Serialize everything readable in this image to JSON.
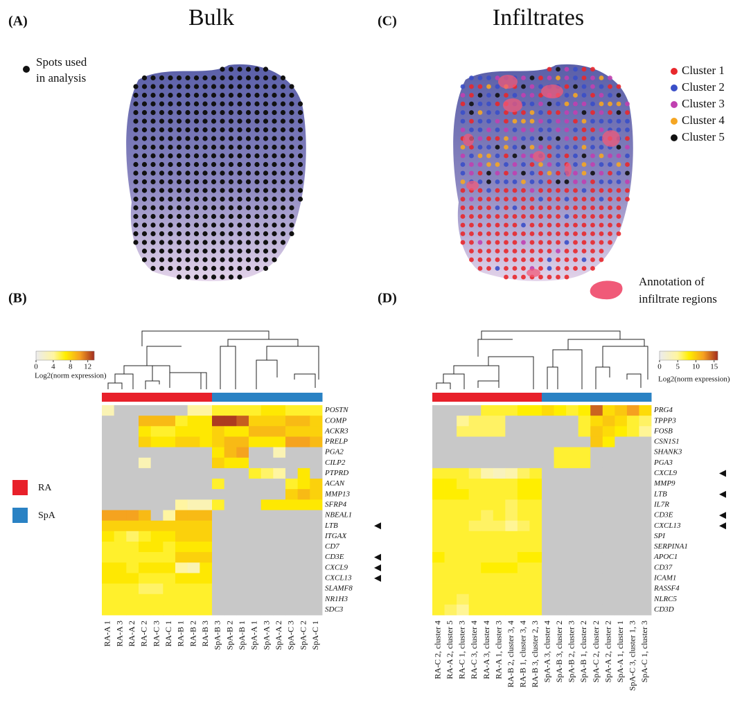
{
  "panel_a": {
    "label": "(A)",
    "title": "Bulk",
    "legend_lines": [
      "Spots used",
      "in analysis"
    ],
    "spot_color": "#111111"
  },
  "panel_c": {
    "label": "(C)",
    "title": "Infiltrates",
    "clusters": [
      {
        "name": "Cluster 1",
        "color": "#e8282c"
      },
      {
        "name": "Cluster 2",
        "color": "#3a4fc8"
      },
      {
        "name": "Cluster 3",
        "color": "#c040b0"
      },
      {
        "name": "Cluster 4",
        "color": "#f5a623"
      },
      {
        "name": "Cluster 5",
        "color": "#111111",
        "text_color": "#e8202a"
      }
    ],
    "annotation_lines": [
      "Annotation of",
      "infiltrate regions"
    ],
    "annotation_color": "#f05a78"
  },
  "panel_b": {
    "label": "(B)",
    "colorbar": {
      "label": "Log2(norm expression)",
      "lim": [
        0,
        13.5
      ],
      "ticks": [
        0,
        4,
        8,
        12
      ]
    },
    "groups": [
      {
        "name": "RA",
        "color": "#e8202a"
      },
      {
        "name": "SpA",
        "color": "#2a82c4"
      }
    ],
    "columns": [
      "RA-A 1",
      "RA-A 3",
      "RA-A 2",
      "RA-C 2",
      "RA-C 3",
      "RA-C 1",
      "RA-B 1",
      "RA-B 2",
      "RA-B 3",
      "SpA-B 3",
      "SpA-B 2",
      "SpA-B 1",
      "SpA-A 1",
      "SpA-A 3",
      "SpA-A 2",
      "SpA-C 3",
      "SpA-C 2",
      "SpA-C 1"
    ],
    "highlight_index": 2,
    "highlight_color": "#e8202a",
    "rows": [
      {
        "gene": "POSTN",
        "marked": false,
        "values": [
          3,
          null,
          null,
          null,
          null,
          null,
          null,
          4,
          4,
          6,
          6,
          6,
          6,
          7,
          7,
          6,
          6,
          6
        ]
      },
      {
        "gene": "COMP",
        "marked": false,
        "values": [
          null,
          null,
          null,
          9,
          9,
          9,
          6,
          7,
          7,
          13,
          13,
          12,
          8,
          8,
          8,
          9,
          9,
          8
        ]
      },
      {
        "gene": "ACKR3",
        "marked": false,
        "values": [
          null,
          null,
          null,
          7,
          6,
          6,
          7,
          7,
          7,
          8,
          7,
          7,
          9,
          9,
          9,
          8,
          8,
          8
        ]
      },
      {
        "gene": "PRELP",
        "marked": false,
        "values": [
          null,
          null,
          null,
          8,
          7,
          7,
          8,
          8,
          7,
          8,
          9,
          9,
          7,
          7,
          7,
          10,
          10,
          9
        ]
      },
      {
        "gene": "PGA2",
        "marked": false,
        "values": [
          null,
          null,
          null,
          null,
          null,
          null,
          null,
          null,
          null,
          7,
          9,
          10,
          null,
          null,
          3,
          null,
          null,
          null
        ]
      },
      {
        "gene": "CILP2",
        "marked": false,
        "values": [
          null,
          null,
          null,
          3,
          null,
          null,
          null,
          null,
          null,
          8,
          7,
          7,
          null,
          null,
          null,
          null,
          null,
          null
        ]
      },
      {
        "gene": "PTPRD",
        "marked": false,
        "values": [
          null,
          null,
          null,
          null,
          null,
          null,
          null,
          null,
          null,
          null,
          null,
          null,
          6,
          5,
          4,
          null,
          7,
          null
        ]
      },
      {
        "gene": "ACAN",
        "marked": false,
        "values": [
          null,
          null,
          null,
          null,
          null,
          null,
          null,
          null,
          null,
          6,
          null,
          null,
          null,
          null,
          null,
          6,
          7,
          8
        ]
      },
      {
        "gene": "MMP13",
        "marked": false,
        "values": [
          null,
          null,
          null,
          null,
          null,
          null,
          null,
          null,
          null,
          null,
          null,
          null,
          null,
          null,
          null,
          8,
          9,
          8
        ]
      },
      {
        "gene": "SFRP4",
        "marked": false,
        "values": [
          null,
          null,
          null,
          null,
          null,
          null,
          4,
          3,
          3,
          6,
          null,
          null,
          null,
          7,
          7,
          7,
          7,
          7
        ]
      },
      {
        "gene": "NBEAL1",
        "marked": false,
        "values": [
          10,
          10,
          10,
          9,
          null,
          4,
          9,
          9,
          9,
          null,
          null,
          null,
          null,
          null,
          null,
          null,
          null,
          null
        ]
      },
      {
        "gene": "LTB",
        "marked": true,
        "values": [
          8,
          8,
          8,
          8,
          8,
          8,
          8,
          8,
          8,
          null,
          null,
          null,
          null,
          null,
          null,
          null,
          null,
          null
        ]
      },
      {
        "gene": "ITGAX",
        "marked": false,
        "values": [
          7,
          6,
          5,
          6,
          7,
          7,
          8,
          8,
          8,
          null,
          null,
          null,
          null,
          null,
          null,
          null,
          null,
          null
        ]
      },
      {
        "gene": "CD7",
        "marked": false,
        "values": [
          6,
          6,
          6,
          7,
          7,
          6,
          7,
          7,
          7,
          null,
          null,
          null,
          null,
          null,
          null,
          null,
          null,
          null
        ]
      },
      {
        "gene": "CD3E",
        "marked": true,
        "values": [
          6,
          6,
          6,
          6,
          6,
          6,
          8,
          8,
          8,
          null,
          null,
          null,
          null,
          null,
          null,
          null,
          null,
          null
        ]
      },
      {
        "gene": "CXCL9",
        "marked": true,
        "values": [
          7,
          7,
          6,
          7,
          7,
          7,
          4,
          3,
          7,
          null,
          null,
          null,
          null,
          null,
          null,
          null,
          null,
          null
        ]
      },
      {
        "gene": "CXCL13",
        "marked": true,
        "values": [
          7,
          7,
          7,
          6,
          6,
          6,
          7,
          7,
          7,
          null,
          null,
          null,
          null,
          null,
          null,
          null,
          null,
          null
        ]
      },
      {
        "gene": "SLAMF8",
        "marked": false,
        "values": [
          6,
          6,
          6,
          5,
          5,
          6,
          6,
          6,
          6,
          null,
          null,
          null,
          null,
          null,
          null,
          null,
          null,
          null
        ]
      },
      {
        "gene": "NR1H3",
        "marked": false,
        "values": [
          6,
          6,
          6,
          6,
          6,
          6,
          6,
          6,
          6,
          null,
          null,
          null,
          null,
          null,
          null,
          null,
          null,
          null
        ]
      },
      {
        "gene": "SDC3",
        "marked": false,
        "values": [
          6,
          6,
          6,
          6,
          6,
          6,
          6,
          6,
          6,
          null,
          null,
          null,
          null,
          null,
          null,
          null,
          null,
          null
        ]
      }
    ]
  },
  "panel_d": {
    "label": "(D)",
    "colorbar": {
      "label": "Log2(norm expression)",
      "lim": [
        0,
        16
      ],
      "ticks": [
        0,
        5,
        10,
        15
      ]
    },
    "columns": [
      "RA-C 2, cluster 4",
      "RA-A 2, cluster 5",
      "RA-C 1, cluster 3",
      "RA-C 3, cluster 4",
      "RA-A 3, cluster 4",
      "RA-A 1, cluster 3",
      "RA-B 2, cluster 3, 4",
      "RA-B 1, cluster 3, 4",
      "RA-B 3, cluster 2, 3",
      "SpA-A 3, cluster 4",
      "SpA-B 3, cluster 2",
      "SpA-B 2, cluster 3",
      "SpA-B 1, cluster 2",
      "SpA-C 2, cluster 2",
      "SpA-A 2, cluster 2",
      "SpA-A 1, cluster 1",
      "SpA-C 3, cluster 1, 3",
      "SpA-C 1, cluster 3"
    ],
    "highlight_index": 1,
    "highlight_color": "#e8202a",
    "rows": [
      {
        "gene": "PRG4",
        "marked": false,
        "values": [
          null,
          null,
          null,
          null,
          7,
          7,
          7,
          8,
          8,
          9,
          8,
          7,
          8,
          14,
          9,
          10,
          12,
          9
        ]
      },
      {
        "gene": "TPPP3",
        "marked": false,
        "values": [
          null,
          null,
          5,
          6,
          6,
          6,
          null,
          null,
          null,
          null,
          null,
          null,
          7,
          9,
          10,
          9,
          7,
          6
        ]
      },
      {
        "gene": "FOSB",
        "marked": false,
        "values": [
          null,
          null,
          6,
          6,
          6,
          6,
          null,
          null,
          null,
          null,
          null,
          null,
          7,
          10,
          9,
          8,
          7,
          5
        ]
      },
      {
        "gene": "CSN1S1",
        "marked": false,
        "values": [
          null,
          null,
          null,
          null,
          null,
          null,
          null,
          null,
          null,
          null,
          null,
          null,
          null,
          10,
          8,
          null,
          null,
          null
        ]
      },
      {
        "gene": "SHANK3",
        "marked": false,
        "values": [
          null,
          null,
          null,
          null,
          null,
          null,
          null,
          null,
          null,
          null,
          7,
          7,
          7,
          null,
          null,
          null,
          null,
          null
        ]
      },
      {
        "gene": "PGA3",
        "marked": false,
        "values": [
          null,
          null,
          null,
          null,
          null,
          null,
          null,
          null,
          null,
          null,
          7,
          7,
          7,
          null,
          null,
          null,
          null,
          null
        ]
      },
      {
        "gene": "CXCL9",
        "marked": true,
        "values": [
          7,
          7,
          7,
          6,
          4,
          3,
          4,
          6,
          7,
          null,
          null,
          null,
          null,
          null,
          null,
          null,
          null,
          null
        ]
      },
      {
        "gene": "MMP9",
        "marked": false,
        "values": [
          8,
          8,
          7,
          7,
          7,
          7,
          7,
          8,
          8,
          null,
          null,
          null,
          null,
          null,
          null,
          null,
          null,
          null
        ]
      },
      {
        "gene": "LTB",
        "marked": true,
        "values": [
          8,
          8,
          8,
          7,
          7,
          7,
          7,
          8,
          8,
          null,
          null,
          null,
          null,
          null,
          null,
          null,
          null,
          null
        ]
      },
      {
        "gene": "IL7R",
        "marked": false,
        "values": [
          7,
          7,
          7,
          7,
          7,
          7,
          6,
          7,
          7,
          null,
          null,
          null,
          null,
          null,
          null,
          null,
          null,
          null
        ]
      },
      {
        "gene": "CD3E",
        "marked": true,
        "values": [
          7,
          7,
          7,
          7,
          6,
          7,
          6,
          7,
          7,
          null,
          null,
          null,
          null,
          null,
          null,
          null,
          null,
          null
        ]
      },
      {
        "gene": "CXCL13",
        "marked": true,
        "values": [
          7,
          7,
          7,
          6,
          6,
          6,
          5,
          6,
          7,
          null,
          null,
          null,
          null,
          null,
          null,
          null,
          null,
          null
        ]
      },
      {
        "gene": "SPI",
        "marked": false,
        "values": [
          7,
          7,
          7,
          7,
          7,
          7,
          7,
          7,
          7,
          null,
          null,
          null,
          null,
          null,
          null,
          null,
          null,
          null
        ]
      },
      {
        "gene": "SERPINA1",
        "marked": false,
        "values": [
          7,
          7,
          7,
          7,
          7,
          7,
          7,
          7,
          7,
          null,
          null,
          null,
          null,
          null,
          null,
          null,
          null,
          null
        ]
      },
      {
        "gene": "APOC1",
        "marked": false,
        "values": [
          8,
          7,
          7,
          7,
          7,
          7,
          7,
          8,
          8,
          null,
          null,
          null,
          null,
          null,
          null,
          null,
          null,
          null
        ]
      },
      {
        "gene": "CD37",
        "marked": false,
        "values": [
          7,
          7,
          7,
          7,
          8,
          8,
          8,
          7,
          7,
          null,
          null,
          null,
          null,
          null,
          null,
          null,
          null,
          null
        ]
      },
      {
        "gene": "ICAM1",
        "marked": false,
        "values": [
          7,
          7,
          7,
          7,
          7,
          7,
          7,
          7,
          7,
          null,
          null,
          null,
          null,
          null,
          null,
          null,
          null,
          null
        ]
      },
      {
        "gene": "RASSF4",
        "marked": false,
        "values": [
          7,
          7,
          7,
          7,
          7,
          7,
          7,
          7,
          7,
          null,
          null,
          null,
          null,
          null,
          null,
          null,
          null,
          null
        ]
      },
      {
        "gene": "NLRC5",
        "marked": false,
        "values": [
          7,
          7,
          6,
          7,
          7,
          7,
          7,
          7,
          7,
          null,
          null,
          null,
          null,
          null,
          null,
          null,
          null,
          null
        ]
      },
      {
        "gene": "CD3D",
        "marked": false,
        "values": [
          7,
          6,
          5,
          7,
          7,
          7,
          7,
          7,
          7,
          null,
          null,
          null,
          null,
          null,
          null,
          null,
          null,
          null
        ]
      }
    ]
  }
}
